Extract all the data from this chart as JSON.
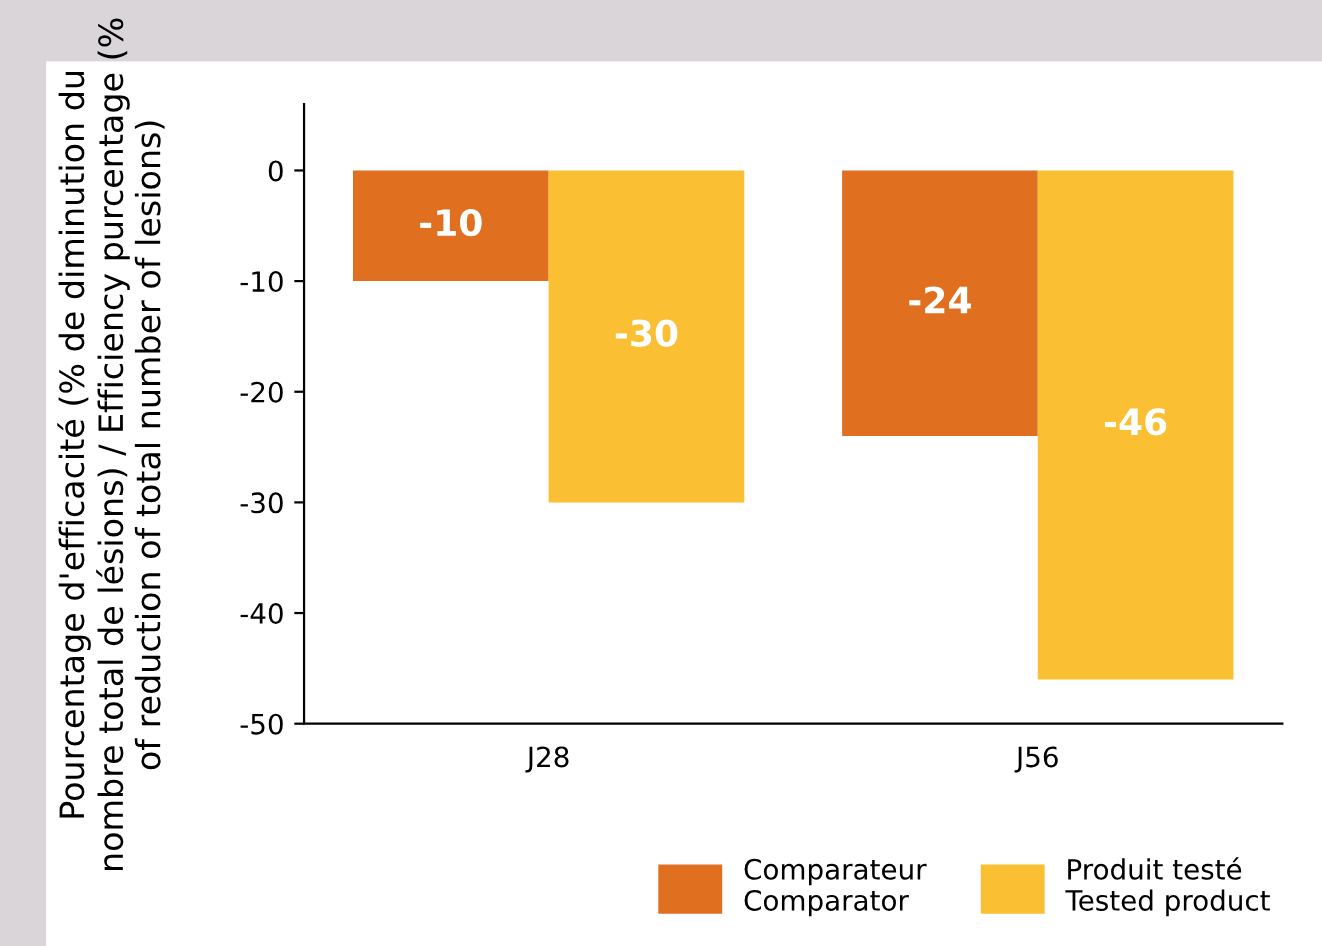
{
  "chart_data": {
    "type": "bar",
    "ylabel": "Pourcentage d'efficacité (% de diminution du nombre total de lésions) / Efficiency purcentage (% of reduction of total number of lesions)",
    "categories": [
      "J28",
      "J56"
    ],
    "series": [
      {
        "name": "Comparateur\nComparator",
        "color": "#e07020",
        "values": [
          -10,
          -24
        ]
      },
      {
        "name": "Produit testé\nTested product",
        "color": "#fbbf33",
        "values": [
          -30,
          -46
        ]
      }
    ],
    "ylim": [
      -50,
      6
    ],
    "yticks": [
      0,
      -10,
      -20,
      -30,
      -40,
      -50
    ],
    "data_labels": true,
    "grid": false,
    "legend": "bottom right"
  }
}
